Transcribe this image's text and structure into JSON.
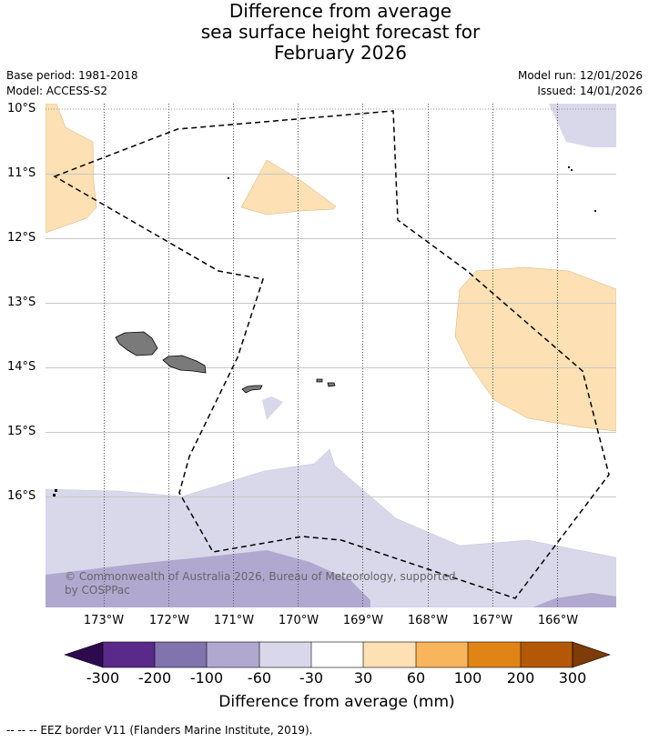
{
  "header": {
    "title_line1": "Difference from average",
    "title_line2": "sea surface height forecast for",
    "title_line3": "February 2026",
    "base_period": "Base period: 1981-2018",
    "model": "Model: ACCESS-S2",
    "model_run": "Model run: 12/01/2026",
    "issued": "Issued: 14/01/2026"
  },
  "map": {
    "lat_labels": [
      "10°S",
      "11°S",
      "12°S",
      "13°S",
      "14°S",
      "15°S",
      "16°S"
    ],
    "lon_labels": [
      "173°W",
      "172°W",
      "171°W",
      "170°W",
      "169°W",
      "168°W",
      "167°W",
      "166°W"
    ],
    "copyright_line1": "© Commonwealth of Australia 2026, Bureau of Meteorology, supported",
    "copyright_line2": "by COSPPac"
  },
  "colorbar": {
    "ticks": [
      "-300",
      "-200",
      "-100",
      "-60",
      "-30",
      "30",
      "60",
      "100",
      "200",
      "300"
    ],
    "colors": [
      "#2d0a4e",
      "#5a2a8a",
      "#8073ae",
      "#b1a8d0",
      "#d8d8ea",
      "#ffffff",
      "#fde0b3",
      "#f8b55c",
      "#e08515",
      "#b35806",
      "#7f3b08"
    ],
    "title": "Difference from average (mm)"
  },
  "footer": {
    "legend_text": "--  --  -- EEZ border V11 (Flanders Marine Institute, 2019)."
  }
}
